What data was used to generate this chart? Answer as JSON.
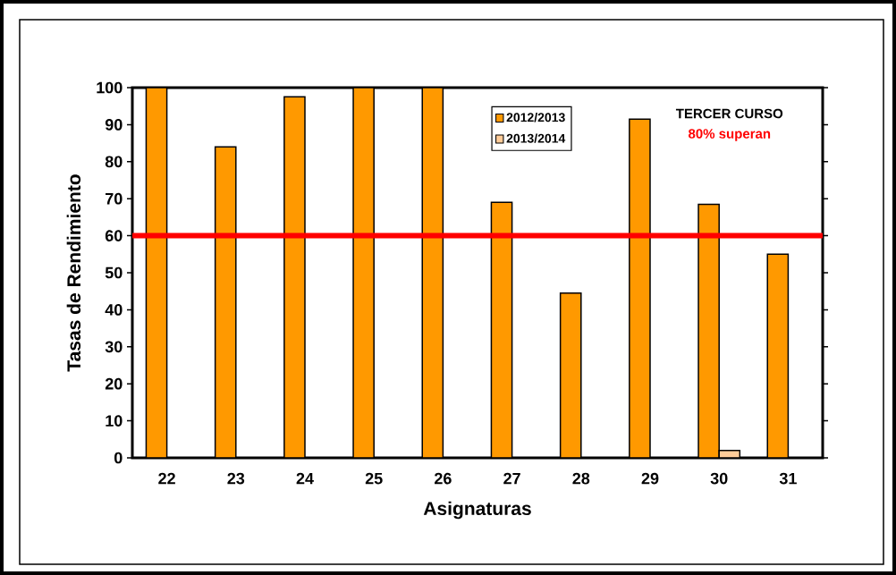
{
  "chart_data": {
    "type": "bar",
    "xlabel": "Asignaturas",
    "ylabel": "Tasas de Rendimiento",
    "categories": [
      "22",
      "23",
      "24",
      "25",
      "26",
      "27",
      "28",
      "29",
      "30",
      "31"
    ],
    "series": [
      {
        "name": "2012/2013",
        "color": "#ff9900",
        "values": [
          100,
          84,
          97.5,
          100,
          100,
          69,
          44.5,
          91.5,
          68.5,
          55
        ]
      },
      {
        "name": "2013/2014",
        "color": "#ffcc99",
        "values": [
          null,
          null,
          null,
          null,
          null,
          null,
          null,
          null,
          2,
          null
        ]
      }
    ],
    "ylim": [
      0,
      100
    ],
    "yticks": [
      0,
      10,
      20,
      30,
      40,
      50,
      60,
      70,
      80,
      90,
      100
    ],
    "ref_lines": [
      {
        "axis": "y",
        "value": 60,
        "color": "#ff0000"
      }
    ],
    "annotations": [
      "TERCER CURSO",
      "80% superan"
    ],
    "legend": "top",
    "grid": false
  }
}
